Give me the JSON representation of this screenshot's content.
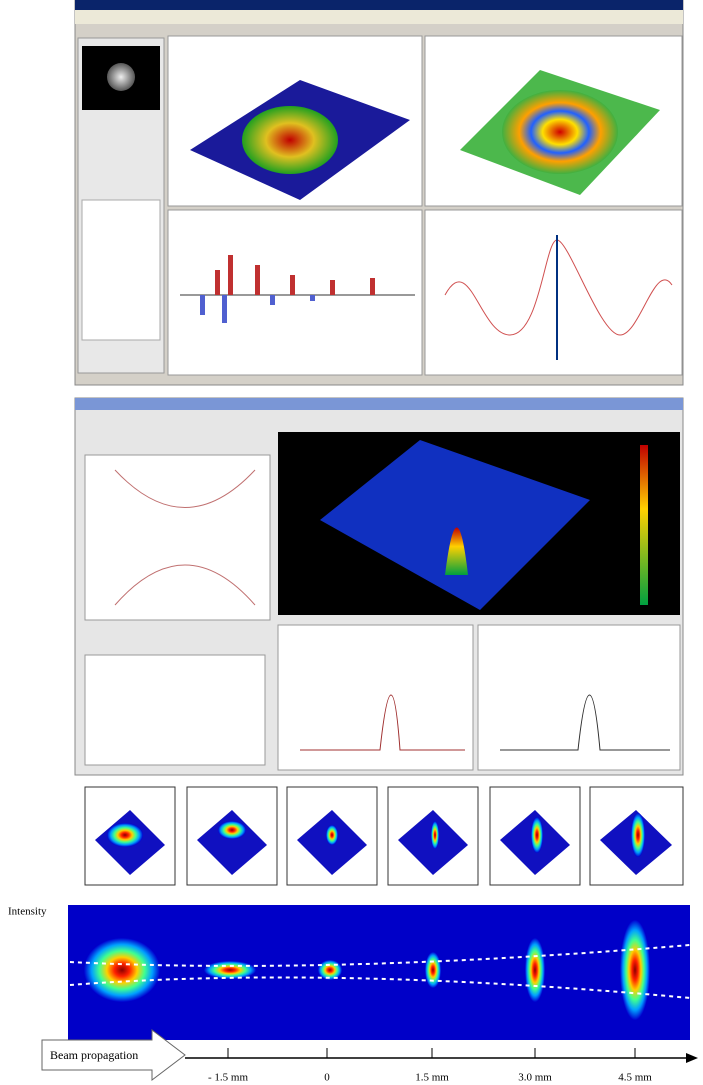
{
  "figure": {
    "y_label": "Intensity",
    "arrow_label": "Beam propagation",
    "positions": [
      "- 1.5 mm",
      "0",
      "1.5 mm",
      "3.0 mm",
      "4.5 mm"
    ]
  }
}
